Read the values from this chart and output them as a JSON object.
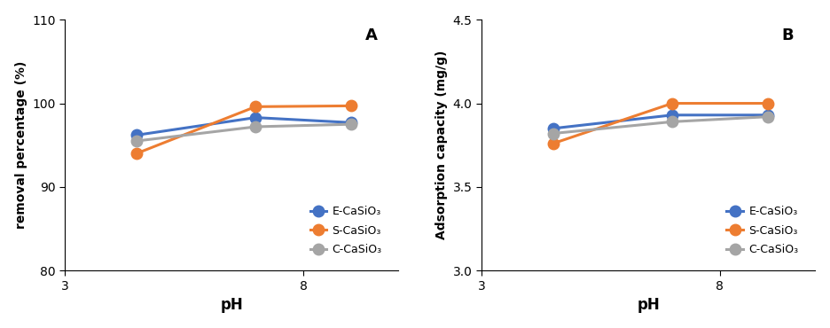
{
  "ph_values": [
    4.5,
    7.0,
    9.0
  ],
  "xlim": [
    3,
    10
  ],
  "xticks": [
    3,
    8
  ],
  "A": {
    "title": "A",
    "ylabel": "removal percentage (%)",
    "ylim": [
      80,
      110
    ],
    "yticks": [
      80,
      90,
      100,
      110
    ],
    "E_CaSiO3": [
      96.2,
      98.3,
      97.7
    ],
    "S_CaSiO3": [
      94.0,
      99.6,
      99.7
    ],
    "C_CaSiO3": [
      95.5,
      97.2,
      97.5
    ]
  },
  "B": {
    "title": "B",
    "ylabel": "Adsorption capacity (mg/g)",
    "ylim": [
      3.0,
      4.5
    ],
    "yticks": [
      3.0,
      3.5,
      4.0,
      4.5
    ],
    "E_CaSiO3": [
      3.85,
      3.93,
      3.93
    ],
    "S_CaSiO3": [
      3.76,
      4.0,
      4.0
    ],
    "C_CaSiO3": [
      3.82,
      3.89,
      3.92
    ]
  },
  "colors": {
    "E_CaSiO3": "#4472C4",
    "S_CaSiO3": "#ED7D31",
    "C_CaSiO3": "#A5A5A5"
  },
  "labels": {
    "E_CaSiO3": "E-CaSiO₃",
    "S_CaSiO3": "S-CaSiO₃",
    "C_CaSiO3": "C-CaSiO₃"
  },
  "xlabel": "pH",
  "marker": "o",
  "markersize": 9,
  "linewidth": 2.2,
  "background_color": "#ffffff"
}
